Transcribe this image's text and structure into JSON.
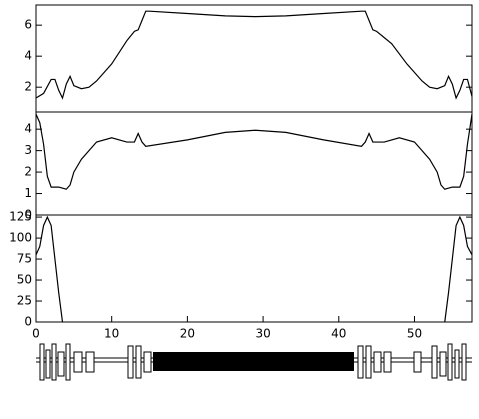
{
  "chart_data": [
    {
      "type": "line",
      "color": "#000000",
      "xlim": [
        0,
        57.6
      ],
      "ylim": [
        0.4,
        7.3
      ],
      "yticks": [
        2,
        4,
        6
      ],
      "x": [
        0,
        1,
        2,
        2.5,
        3,
        3.5,
        4,
        4.5,
        5,
        6,
        7,
        8,
        10,
        12,
        13,
        13.5,
        14,
        14.5,
        15,
        20,
        25,
        29,
        33,
        38,
        43,
        43.5,
        44,
        44.5,
        45,
        47,
        49,
        51,
        52,
        53,
        54,
        54.5,
        55,
        55.5,
        56,
        56.5,
        57,
        57.6
      ],
      "values": [
        1.3,
        1.6,
        2.5,
        2.5,
        1.8,
        1.3,
        2.2,
        2.7,
        2.1,
        1.9,
        2.0,
        2.4,
        3.5,
        5.0,
        5.6,
        5.7,
        6.3,
        6.9,
        6.9,
        6.75,
        6.6,
        6.55,
        6.6,
        6.75,
        6.9,
        6.9,
        6.3,
        5.7,
        5.6,
        4.8,
        3.5,
        2.4,
        2.0,
        1.9,
        2.1,
        2.7,
        2.2,
        1.3,
        1.8,
        2.5,
        2.5,
        1.4
      ]
    },
    {
      "type": "line",
      "color": "#000000",
      "xlim": [
        0,
        57.6
      ],
      "ylim": [
        0,
        4.8
      ],
      "yticks": [
        0,
        1,
        2,
        3,
        4
      ],
      "x": [
        0,
        0.5,
        1,
        1.5,
        2,
        3,
        4,
        4.5,
        5,
        6,
        8,
        10,
        12,
        13,
        13.5,
        14,
        14.5,
        20,
        25,
        29,
        33,
        38,
        43,
        43.5,
        44,
        44.5,
        46,
        48,
        50,
        52,
        53,
        53.5,
        54,
        55,
        56,
        56.5,
        57,
        57.6
      ],
      "values": [
        4.7,
        4.3,
        3.3,
        1.8,
        1.3,
        1.3,
        1.2,
        1.4,
        2.0,
        2.6,
        3.4,
        3.6,
        3.4,
        3.4,
        3.8,
        3.4,
        3.2,
        3.5,
        3.85,
        3.95,
        3.85,
        3.5,
        3.2,
        3.4,
        3.8,
        3.4,
        3.4,
        3.6,
        3.4,
        2.6,
        2.0,
        1.4,
        1.2,
        1.3,
        1.3,
        1.8,
        3.3,
        4.7
      ]
    },
    {
      "type": "line",
      "color": "#000000",
      "xlim": [
        0,
        57.6
      ],
      "ylim": [
        0,
        127.5
      ],
      "yticks": [
        0,
        25,
        50,
        75,
        100,
        125
      ],
      "xticks": [
        0,
        10,
        20,
        30,
        40,
        50
      ],
      "x": [
        0,
        0.5,
        1,
        1.5,
        2,
        2.5,
        3,
        3.5,
        30,
        54,
        54.5,
        55,
        55.5,
        56,
        56.5,
        57,
        57.6
      ],
      "values": [
        80,
        90,
        115,
        125,
        115,
        75,
        35,
        0,
        null,
        0,
        35,
        75,
        115,
        125,
        115,
        90,
        80
      ]
    }
  ]
}
